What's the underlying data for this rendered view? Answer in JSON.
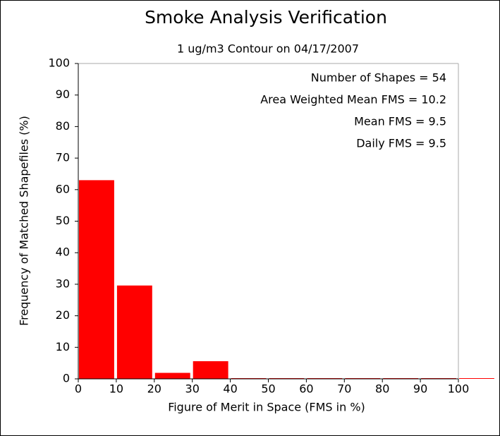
{
  "chart_data": {
    "type": "histogram",
    "title": "Smoke Analysis Verification",
    "subtitle": "1 ug/m3 Contour on 04/17/2007",
    "xlabel": "Figure of Merit in Space (FMS in %)",
    "ylabel": "Frequency of Matched Shapefiles (%)",
    "bins": [
      0,
      10,
      20,
      30,
      40,
      50,
      60,
      70,
      80,
      90,
      100,
      110
    ],
    "values": [
      63.0,
      29.6,
      1.9,
      5.6,
      0,
      0,
      0,
      0,
      0,
      0,
      0
    ],
    "color": "#ff0000",
    "xlim": [
      0,
      100
    ],
    "xticks": [
      0,
      10,
      20,
      30,
      40,
      50,
      60,
      70,
      80,
      90,
      100
    ],
    "ylim": [
      0,
      100
    ],
    "yticks": [
      0,
      10,
      20,
      30,
      40,
      50,
      60,
      70,
      80,
      90,
      100
    ],
    "annotations": [
      "Number of Shapes = 54",
      "Area Weighted Mean FMS = 10.2",
      "Mean FMS = 9.5",
      "Daily FMS = 9.5"
    ]
  }
}
